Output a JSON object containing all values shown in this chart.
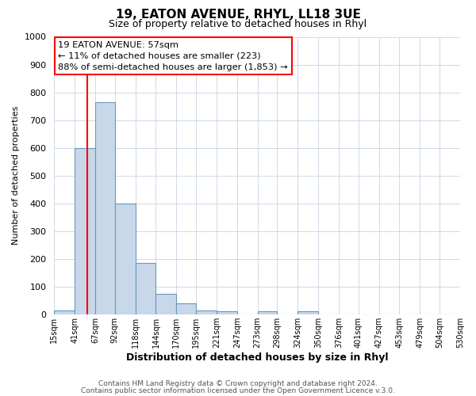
{
  "title1": "19, EATON AVENUE, RHYL, LL18 3UE",
  "title2": "Size of property relative to detached houses in Rhyl",
  "xlabel": "Distribution of detached houses by size in Rhyl",
  "ylabel": "Number of detached properties",
  "bar_edges": [
    15,
    41,
    67,
    92,
    118,
    144,
    170,
    195,
    221,
    247,
    273,
    298,
    324,
    350,
    376,
    401,
    427,
    453,
    479,
    504,
    530
  ],
  "bar_heights": [
    15,
    600,
    765,
    400,
    185,
    75,
    38,
    15,
    10,
    0,
    10,
    0,
    10,
    0,
    0,
    0,
    0,
    0,
    0,
    0
  ],
  "bar_color": "#c8d8ea",
  "bar_edge_color": "#6699bb",
  "red_line_x": 57,
  "ylim": [
    0,
    1000
  ],
  "yticks": [
    0,
    100,
    200,
    300,
    400,
    500,
    600,
    700,
    800,
    900,
    1000
  ],
  "xtick_labels": [
    "15sqm",
    "41sqm",
    "67sqm",
    "92sqm",
    "118sqm",
    "144sqm",
    "170sqm",
    "195sqm",
    "221sqm",
    "247sqm",
    "273sqm",
    "298sqm",
    "324sqm",
    "350sqm",
    "376sqm",
    "401sqm",
    "427sqm",
    "453sqm",
    "479sqm",
    "504sqm",
    "530sqm"
  ],
  "annotation_title": "19 EATON AVENUE: 57sqm",
  "annotation_line1": "← 11% of detached houses are smaller (223)",
  "annotation_line2": "88% of semi-detached houses are larger (1,853) →",
  "footer1": "Contains HM Land Registry data © Crown copyright and database right 2024.",
  "footer2": "Contains public sector information licensed under the Open Government Licence v.3.0.",
  "bg_color": "#ffffff",
  "plot_bg_color": "#ffffff",
  "grid_color": "#c8d4e0",
  "title1_fontsize": 11,
  "title2_fontsize": 9,
  "ylabel_fontsize": 8,
  "xlabel_fontsize": 9
}
